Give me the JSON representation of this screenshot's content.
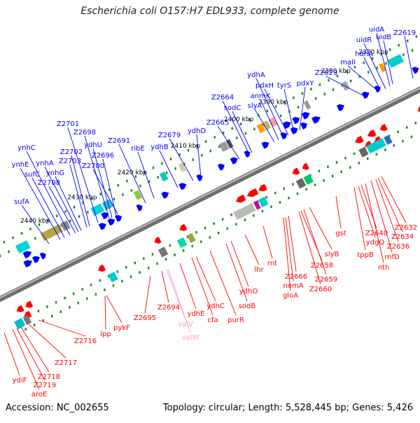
{
  "title": "Escherichia coli O157:H7 EDL933, complete genome",
  "footer": {
    "accession": "Accession: NC_002655",
    "info": "Topology: circular; Length: 5,528,445 bp; Genes: 5,426"
  },
  "colors": {
    "forward_gene": "#0000ff",
    "reverse_gene": "#ff0000",
    "pseudo_gene": "#ff99cc",
    "backbone": "#888888",
    "tick": "#1a8a1a"
  },
  "scale_labels": [
    "2370 kbp",
    "2380 kbp",
    "2390 kbp",
    "2400 kbp",
    "2410 kbp",
    "2420 kbp",
    "2430 kbp",
    "2440 kbp"
  ],
  "genes_forward": [
    "uidA",
    "uidR",
    "uidB",
    "Z2619",
    "hdhA",
    "malI",
    "Z2629",
    "ydhA",
    "pdxH",
    "tyrS",
    "pdxY",
    "anmK",
    "slyA",
    "Z2664",
    "sodC",
    "Z2665",
    "ydhD",
    "Z2679",
    "ydhB",
    "ribE",
    "Z2691",
    "Z2696",
    "ydhU",
    "Z2698",
    "Z2701",
    "Z2702",
    "Z2703",
    "Z2700",
    "ynhC",
    "ynhE",
    "ynhA",
    "ynhG",
    "sufC",
    "Z2708",
    "sufA"
  ],
  "genes_reverse": [
    "Z2632",
    "Z2634",
    "Z2636",
    "Z2640",
    "rnfD",
    "ydgQ",
    "tppB",
    "nth",
    "gst",
    "slyB",
    "Z2658",
    "Z2659",
    "Z2660",
    "Z2666",
    "nemA",
    "gloA",
    "rnt",
    "lhr",
    "ydhO",
    "sodB",
    "purR",
    "ydhC",
    "cfa",
    "ydhE",
    "Z2694",
    "Z2695",
    "pykF",
    "lpp",
    "Z2716",
    "Z2717",
    "Z2718",
    "Z2719",
    "aroE",
    "ydiF"
  ],
  "genes_pseudo": [
    "valV",
    "valW"
  ]
}
